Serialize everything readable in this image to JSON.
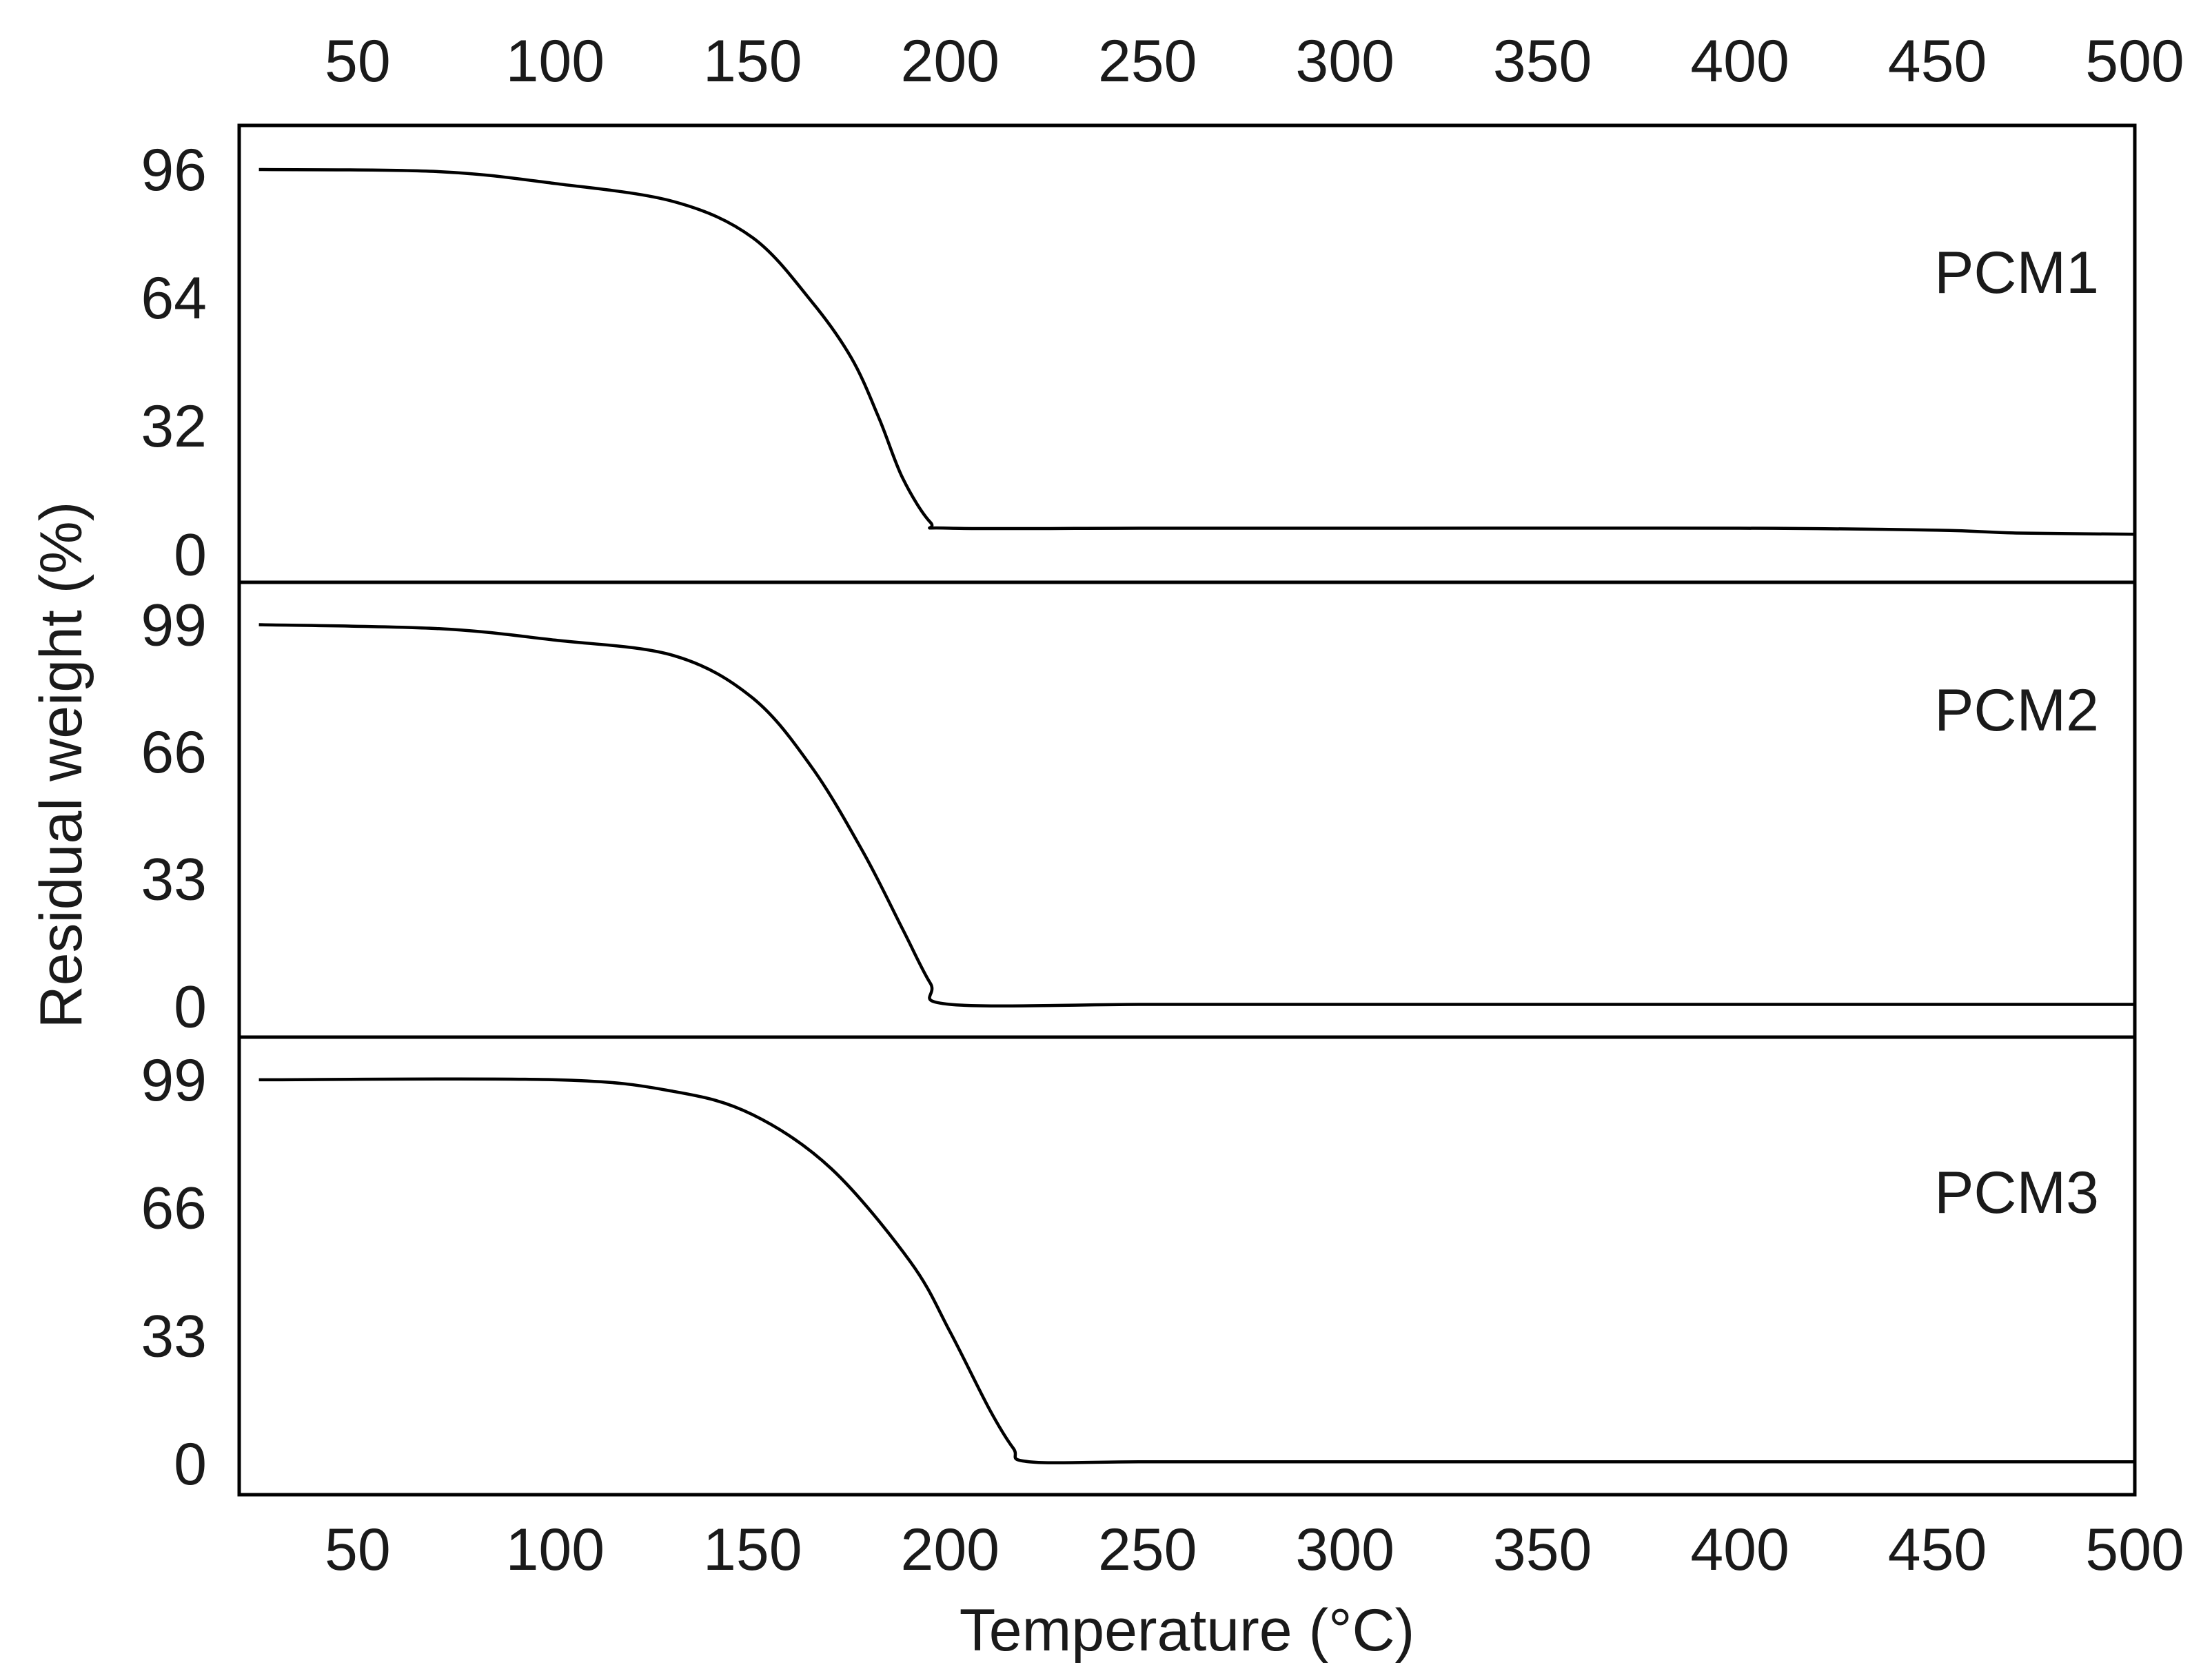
{
  "chart_data": {
    "type": "line",
    "xlabel": "Temperature (°C)",
    "ylabel": "Residual weight (%)",
    "xlim": [
      20,
      500
    ],
    "x_ticks": [
      "50",
      "100",
      "150",
      "200",
      "250",
      "300",
      "350",
      "400",
      "450",
      "500"
    ],
    "grid": false,
    "panels": [
      {
        "series_label": "PCM1",
        "ylim": [
          -7,
          107
        ],
        "y_ticks": [
          "0",
          "32",
          "64",
          "96"
        ],
        "x": [
          25,
          70,
          100,
          130,
          150,
          165,
          175,
          182,
          188,
          195,
          200,
          250,
          300,
          400,
          450,
          470,
          500
        ],
        "values": [
          96,
          95.5,
          92.5,
          88,
          79,
          63,
          49,
          34,
          19,
          8,
          6.5,
          6.5,
          6.5,
          6.5,
          6,
          5.3,
          5
        ]
      },
      {
        "series_label": "PCM2",
        "ylim": [
          -8,
          110
        ],
        "y_ticks": [
          "0",
          "33",
          "66",
          "99"
        ],
        "x": [
          25,
          70,
          100,
          130,
          150,
          165,
          178,
          188,
          195,
          200,
          250,
          300,
          400,
          500
        ],
        "values": [
          99,
          98,
          95,
          91,
          80,
          62,
          40,
          20,
          6,
          0.5,
          0.5,
          0.5,
          0.5,
          0.5
        ]
      },
      {
        "series_label": "PCM3",
        "ylim": [
          -8,
          110
        ],
        "y_ticks": [
          "0",
          "33",
          "66",
          "99"
        ],
        "x": [
          25,
          100,
          130,
          150,
          170,
          190,
          200,
          210,
          216,
          220,
          250,
          300,
          400,
          500
        ],
        "values": [
          99,
          99,
          96,
          90,
          76,
          52,
          34,
          14,
          4,
          0.5,
          0.5,
          0.5,
          0.5,
          0.5
        ]
      }
    ]
  }
}
